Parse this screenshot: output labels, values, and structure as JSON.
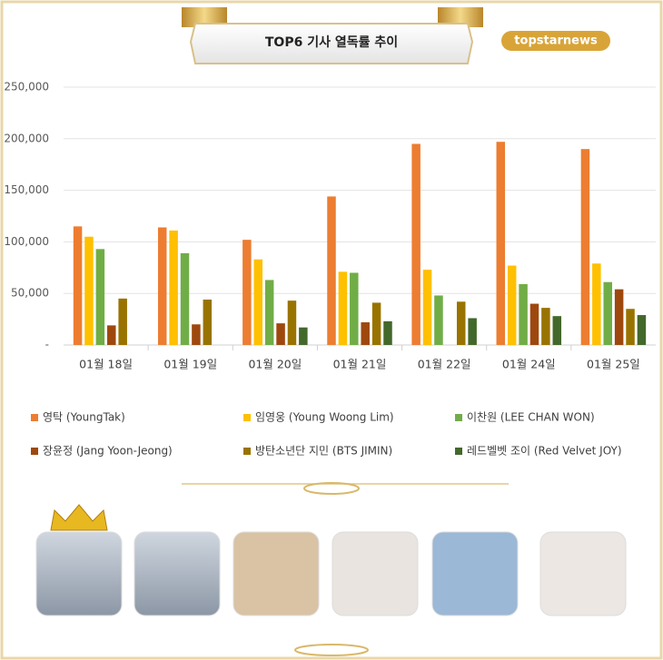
{
  "chart_data": {
    "type": "bar",
    "title": "TOP6 기사 열독률 추이",
    "logo": "topstarnews",
    "categories": [
      "01월 18일",
      "01월 19일",
      "01월 20일",
      "01월 21일",
      "01월 22일",
      "01월 24일",
      "01월 25일"
    ],
    "series": [
      {
        "name": "영탁 (YoungTak)",
        "color": "#ED7D31",
        "values": [
          115000,
          114000,
          102000,
          144000,
          195000,
          197000,
          190000
        ]
      },
      {
        "name": "임영웅 (Young Woong Lim)",
        "color": "#FFC000",
        "values": [
          105000,
          111000,
          83000,
          71000,
          73000,
          77000,
          79000
        ]
      },
      {
        "name": "이찬원 (LEE CHAN WON)",
        "color": "#70AD47",
        "values": [
          93000,
          89000,
          63000,
          70000,
          48000,
          59000,
          61000
        ]
      },
      {
        "name": "장윤정 (Jang Yoon-Jeong)",
        "color": "#9E480E",
        "values": [
          19000,
          20000,
          21000,
          22000,
          null,
          40000,
          54000
        ]
      },
      {
        "name": "방탄소년단 지민 (BTS JIMIN)",
        "color": "#997300",
        "values": [
          45000,
          44000,
          43000,
          41000,
          42000,
          36000,
          35000
        ]
      },
      {
        "name": "레드벨벳 조이 (Red Velvet JOY)",
        "color": "#43682B",
        "values": [
          null,
          null,
          17000,
          23000,
          26000,
          28000,
          29000
        ]
      }
    ],
    "ylim": [
      0,
      250000
    ],
    "yticks": [
      {
        "value": 0,
        "label": "-"
      },
      {
        "value": 50000,
        "label": "50,000"
      },
      {
        "value": 100000,
        "label": "100,000"
      },
      {
        "value": 150000,
        "label": "150,000"
      },
      {
        "value": 200000,
        "label": "200,000"
      },
      {
        "value": 250000,
        "label": "250,000"
      }
    ],
    "grid": true
  }
}
